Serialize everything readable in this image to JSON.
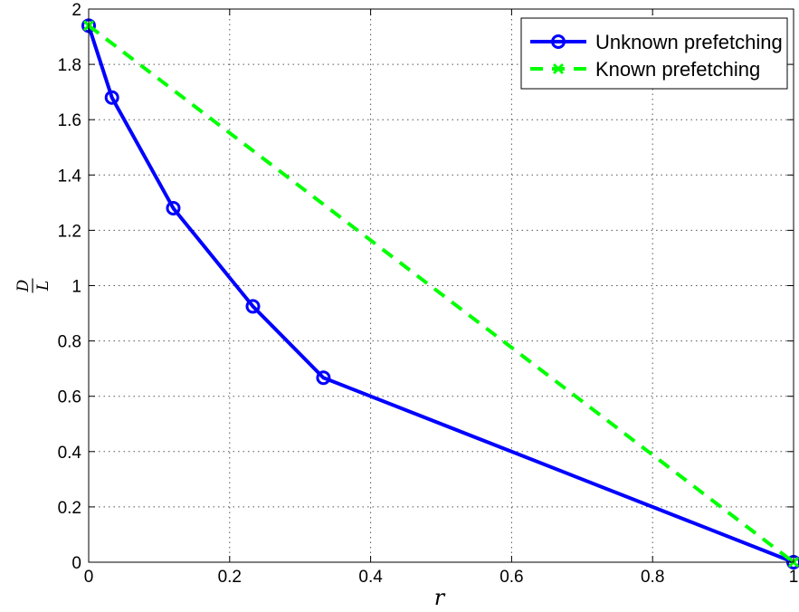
{
  "chart_data": {
    "type": "line",
    "xlabel": "r",
    "ylabel_numerator": "D",
    "ylabel_denominator": "L",
    "xlim": [
      0,
      1
    ],
    "ylim": [
      0,
      2
    ],
    "xticks": [
      0,
      0.2,
      0.4,
      0.6,
      0.8,
      1
    ],
    "xtick_labels": [
      "0",
      "0.2",
      "0.4",
      "0.6",
      "0.8",
      "1"
    ],
    "yticks": [
      0,
      0.2,
      0.4,
      0.6,
      0.8,
      1,
      1.2,
      1.4,
      1.6,
      1.8,
      2
    ],
    "ytick_labels": [
      "0",
      "0.2",
      "0.4",
      "0.6",
      "0.8",
      "1",
      "1.2",
      "1.4",
      "1.6",
      "1.8",
      "2"
    ],
    "grid": true,
    "legend_position": "top-right",
    "series": [
      {
        "name": "Unknown prefetching",
        "color": "#0000ff",
        "style": "solid",
        "marker": "circle",
        "x": [
          0,
          0.033,
          0.12,
          0.233,
          0.333,
          1
        ],
        "y": [
          1.94,
          1.68,
          1.28,
          0.925,
          0.667,
          0
        ]
      },
      {
        "name": "Known prefetching",
        "color": "#00ff00",
        "style": "dashed",
        "marker": "x",
        "x": [
          0,
          1
        ],
        "y": [
          1.94,
          0
        ]
      }
    ]
  }
}
